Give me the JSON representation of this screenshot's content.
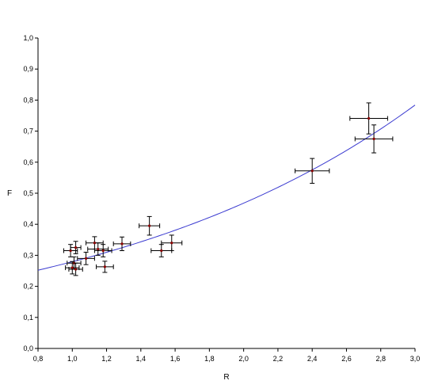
{
  "chart_data": {
    "type": "scatter",
    "xlabel": "R",
    "ylabel": "F",
    "xlim": [
      0.8,
      3.0
    ],
    "ylim": [
      0.0,
      1.0
    ],
    "x_ticks": [
      "0,8",
      "1,0",
      "1,2",
      "1,4",
      "1,6",
      "1,8",
      "2,0",
      "2,2",
      "2,4",
      "2,6",
      "2,8",
      "3,0"
    ],
    "y_ticks": [
      "0,0",
      "0,1",
      "0,2",
      "0,3",
      "0,4",
      "0,5",
      "0,6",
      "0,7",
      "0,8",
      "0,9",
      "1,0"
    ],
    "grid": false,
    "points": [
      {
        "x": 0.99,
        "y": 0.315,
        "xerr": 0.04,
        "yerr": 0.02
      },
      {
        "x": 1.02,
        "y": 0.325,
        "xerr": 0.03,
        "yerr": 0.02
      },
      {
        "x": 1.01,
        "y": 0.275,
        "xerr": 0.04,
        "yerr": 0.02
      },
      {
        "x": 1.0,
        "y": 0.26,
        "xerr": 0.04,
        "yerr": 0.02
      },
      {
        "x": 1.02,
        "y": 0.255,
        "xerr": 0.04,
        "yerr": 0.02
      },
      {
        "x": 1.08,
        "y": 0.29,
        "xerr": 0.05,
        "yerr": 0.02
      },
      {
        "x": 1.13,
        "y": 0.34,
        "xerr": 0.05,
        "yerr": 0.02
      },
      {
        "x": 1.15,
        "y": 0.32,
        "xerr": 0.06,
        "yerr": 0.02
      },
      {
        "x": 1.18,
        "y": 0.315,
        "xerr": 0.05,
        "yerr": 0.02
      },
      {
        "x": 1.19,
        "y": 0.263,
        "xerr": 0.05,
        "yerr": 0.018
      },
      {
        "x": 1.29,
        "y": 0.337,
        "xerr": 0.05,
        "yerr": 0.022
      },
      {
        "x": 1.45,
        "y": 0.395,
        "xerr": 0.06,
        "yerr": 0.03
      },
      {
        "x": 1.52,
        "y": 0.315,
        "xerr": 0.06,
        "yerr": 0.02
      },
      {
        "x": 1.58,
        "y": 0.34,
        "xerr": 0.06,
        "yerr": 0.025
      },
      {
        "x": 2.4,
        "y": 0.572,
        "xerr": 0.1,
        "yerr": 0.04
      },
      {
        "x": 2.73,
        "y": 0.741,
        "xerr": 0.11,
        "yerr": 0.05
      },
      {
        "x": 2.76,
        "y": 0.675,
        "xerr": 0.11,
        "yerr": 0.045
      }
    ],
    "fit_curve": {
      "type": "exponential",
      "color": "#3a3ad0",
      "samples": [
        [
          0.8,
          0.252
        ],
        [
          1.0,
          0.28
        ],
        [
          1.2,
          0.31
        ],
        [
          1.4,
          0.344
        ],
        [
          1.6,
          0.381
        ],
        [
          1.8,
          0.423
        ],
        [
          2.0,
          0.469
        ],
        [
          2.2,
          0.52
        ],
        [
          2.4,
          0.576
        ],
        [
          2.6,
          0.638
        ],
        [
          2.8,
          0.707
        ],
        [
          3.0,
          0.784
        ]
      ]
    },
    "colors": {
      "axis": "#000000",
      "errorbar": "#000000",
      "marker": "#8b0000",
      "curve": "#3a3ad0"
    }
  }
}
